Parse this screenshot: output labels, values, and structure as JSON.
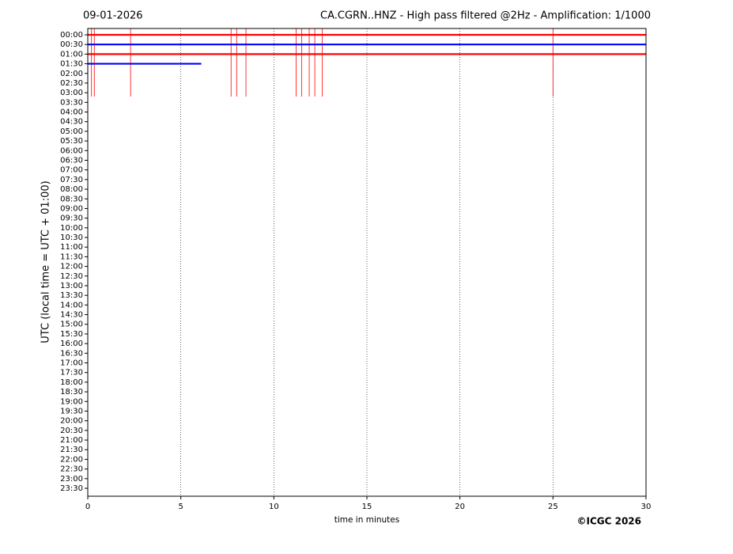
{
  "chart_data": {
    "type": "helicorder",
    "date": "09-01-2026",
    "title": "CA.CGRN..HNZ - High pass filtered @2Hz - Amplification: 1/1000",
    "ylabel": "UTC (local time = UTC + 01:00)",
    "xlabel": "time in minutes",
    "copyright": "©ICGC 2026",
    "xlim": [
      0,
      30
    ],
    "xticks": [
      0,
      5,
      10,
      15,
      20,
      25,
      30
    ],
    "grid": true,
    "categories": [
      "00:00",
      "00:30",
      "01:00",
      "01:30",
      "02:00",
      "02:30",
      "03:00",
      "03:30",
      "04:00",
      "04:30",
      "05:00",
      "05:30",
      "06:00",
      "06:30",
      "07:00",
      "07:30",
      "08:00",
      "08:30",
      "09:00",
      "09:30",
      "10:00",
      "10:30",
      "11:00",
      "11:30",
      "12:00",
      "12:30",
      "13:00",
      "13:30",
      "14:00",
      "14:30",
      "15:00",
      "15:30",
      "16:00",
      "16:30",
      "17:00",
      "17:30",
      "18:00",
      "18:30",
      "19:00",
      "19:30",
      "20:00",
      "20:30",
      "21:00",
      "21:30",
      "22:00",
      "22:30",
      "23:00",
      "23:30"
    ],
    "series": [
      {
        "color": "#ff0000",
        "x": [
          0,
          30
        ],
        "spikes": [
          0.2,
          0.35,
          2.3,
          7.7,
          8.0,
          8.5,
          11.2,
          11.5,
          11.9,
          12.2,
          12.6,
          25.0
        ]
      },
      {
        "color": "#0000ff",
        "x": [
          0,
          30
        ],
        "spikes": []
      },
      {
        "color": "#ff0000",
        "x": [
          0,
          30
        ],
        "spikes": []
      },
      {
        "color": "#0000ff",
        "x": [
          0,
          6.1
        ],
        "spikes": []
      }
    ]
  }
}
